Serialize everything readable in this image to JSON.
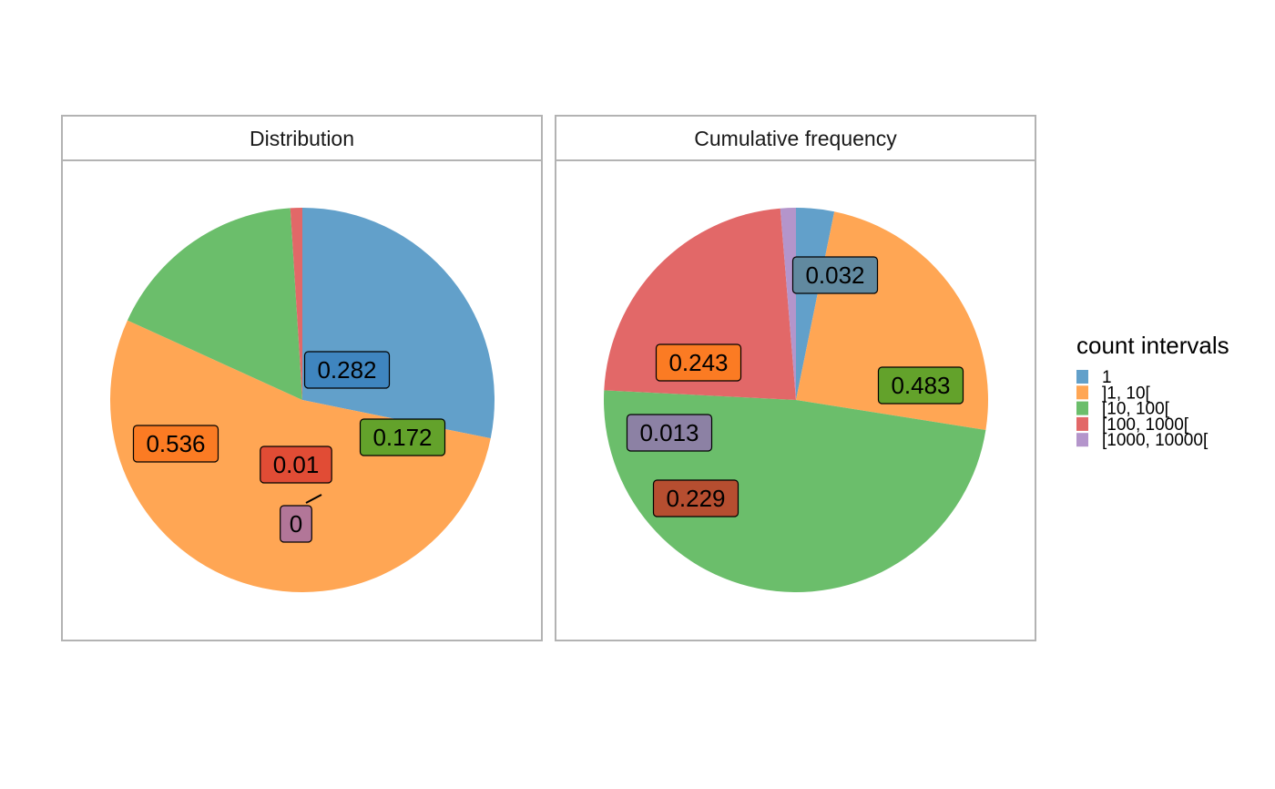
{
  "chart_data": [
    {
      "type": "pie",
      "title": "Distribution",
      "categories": [
        "1",
        "]1, 10[",
        "[10, 100[",
        "[100, 1000[",
        "[1000, 10000["
      ],
      "values": [
        0.282,
        0.536,
        0.172,
        0.01,
        0
      ],
      "data_labels": [
        "0.282",
        "0.536",
        "0.172",
        "0.01",
        "0"
      ],
      "start_angle_deg": 0,
      "direction": "clockwise"
    },
    {
      "type": "pie",
      "title": "Cumulative frequency",
      "categories": [
        "1",
        "]1, 10[",
        "[10, 100[",
        "[100, 1000[",
        "[1000, 10000["
      ],
      "values": [
        0.032,
        0.243,
        0.483,
        0.229,
        0.013
      ],
      "data_labels": [
        "0.032",
        "0.243",
        "0.483",
        "0.229",
        "0.013"
      ],
      "start_angle_deg": 0,
      "direction": "clockwise"
    }
  ],
  "legend": {
    "title": "count intervals",
    "placement": "right",
    "items": [
      "1",
      "]1, 10[",
      "[10, 100[",
      "[100, 1000[",
      "[1000, 10000["
    ]
  },
  "colors": {
    "slice_fill": [
      "#62a0ca",
      "#ffa654",
      "#6bbe6b",
      "#e26868",
      "#b495cb"
    ],
    "label_fill": [
      "#3f85bf",
      "#fb7b23",
      "#63a22b",
      "#e14c35",
      "#b27698"
    ],
    "label_fill_cumulative": [
      "#61899f",
      "#fb7b23",
      "#63a22b",
      "#b64e30",
      "#8c81a4"
    ],
    "panel_border": "#b3b3b3"
  }
}
